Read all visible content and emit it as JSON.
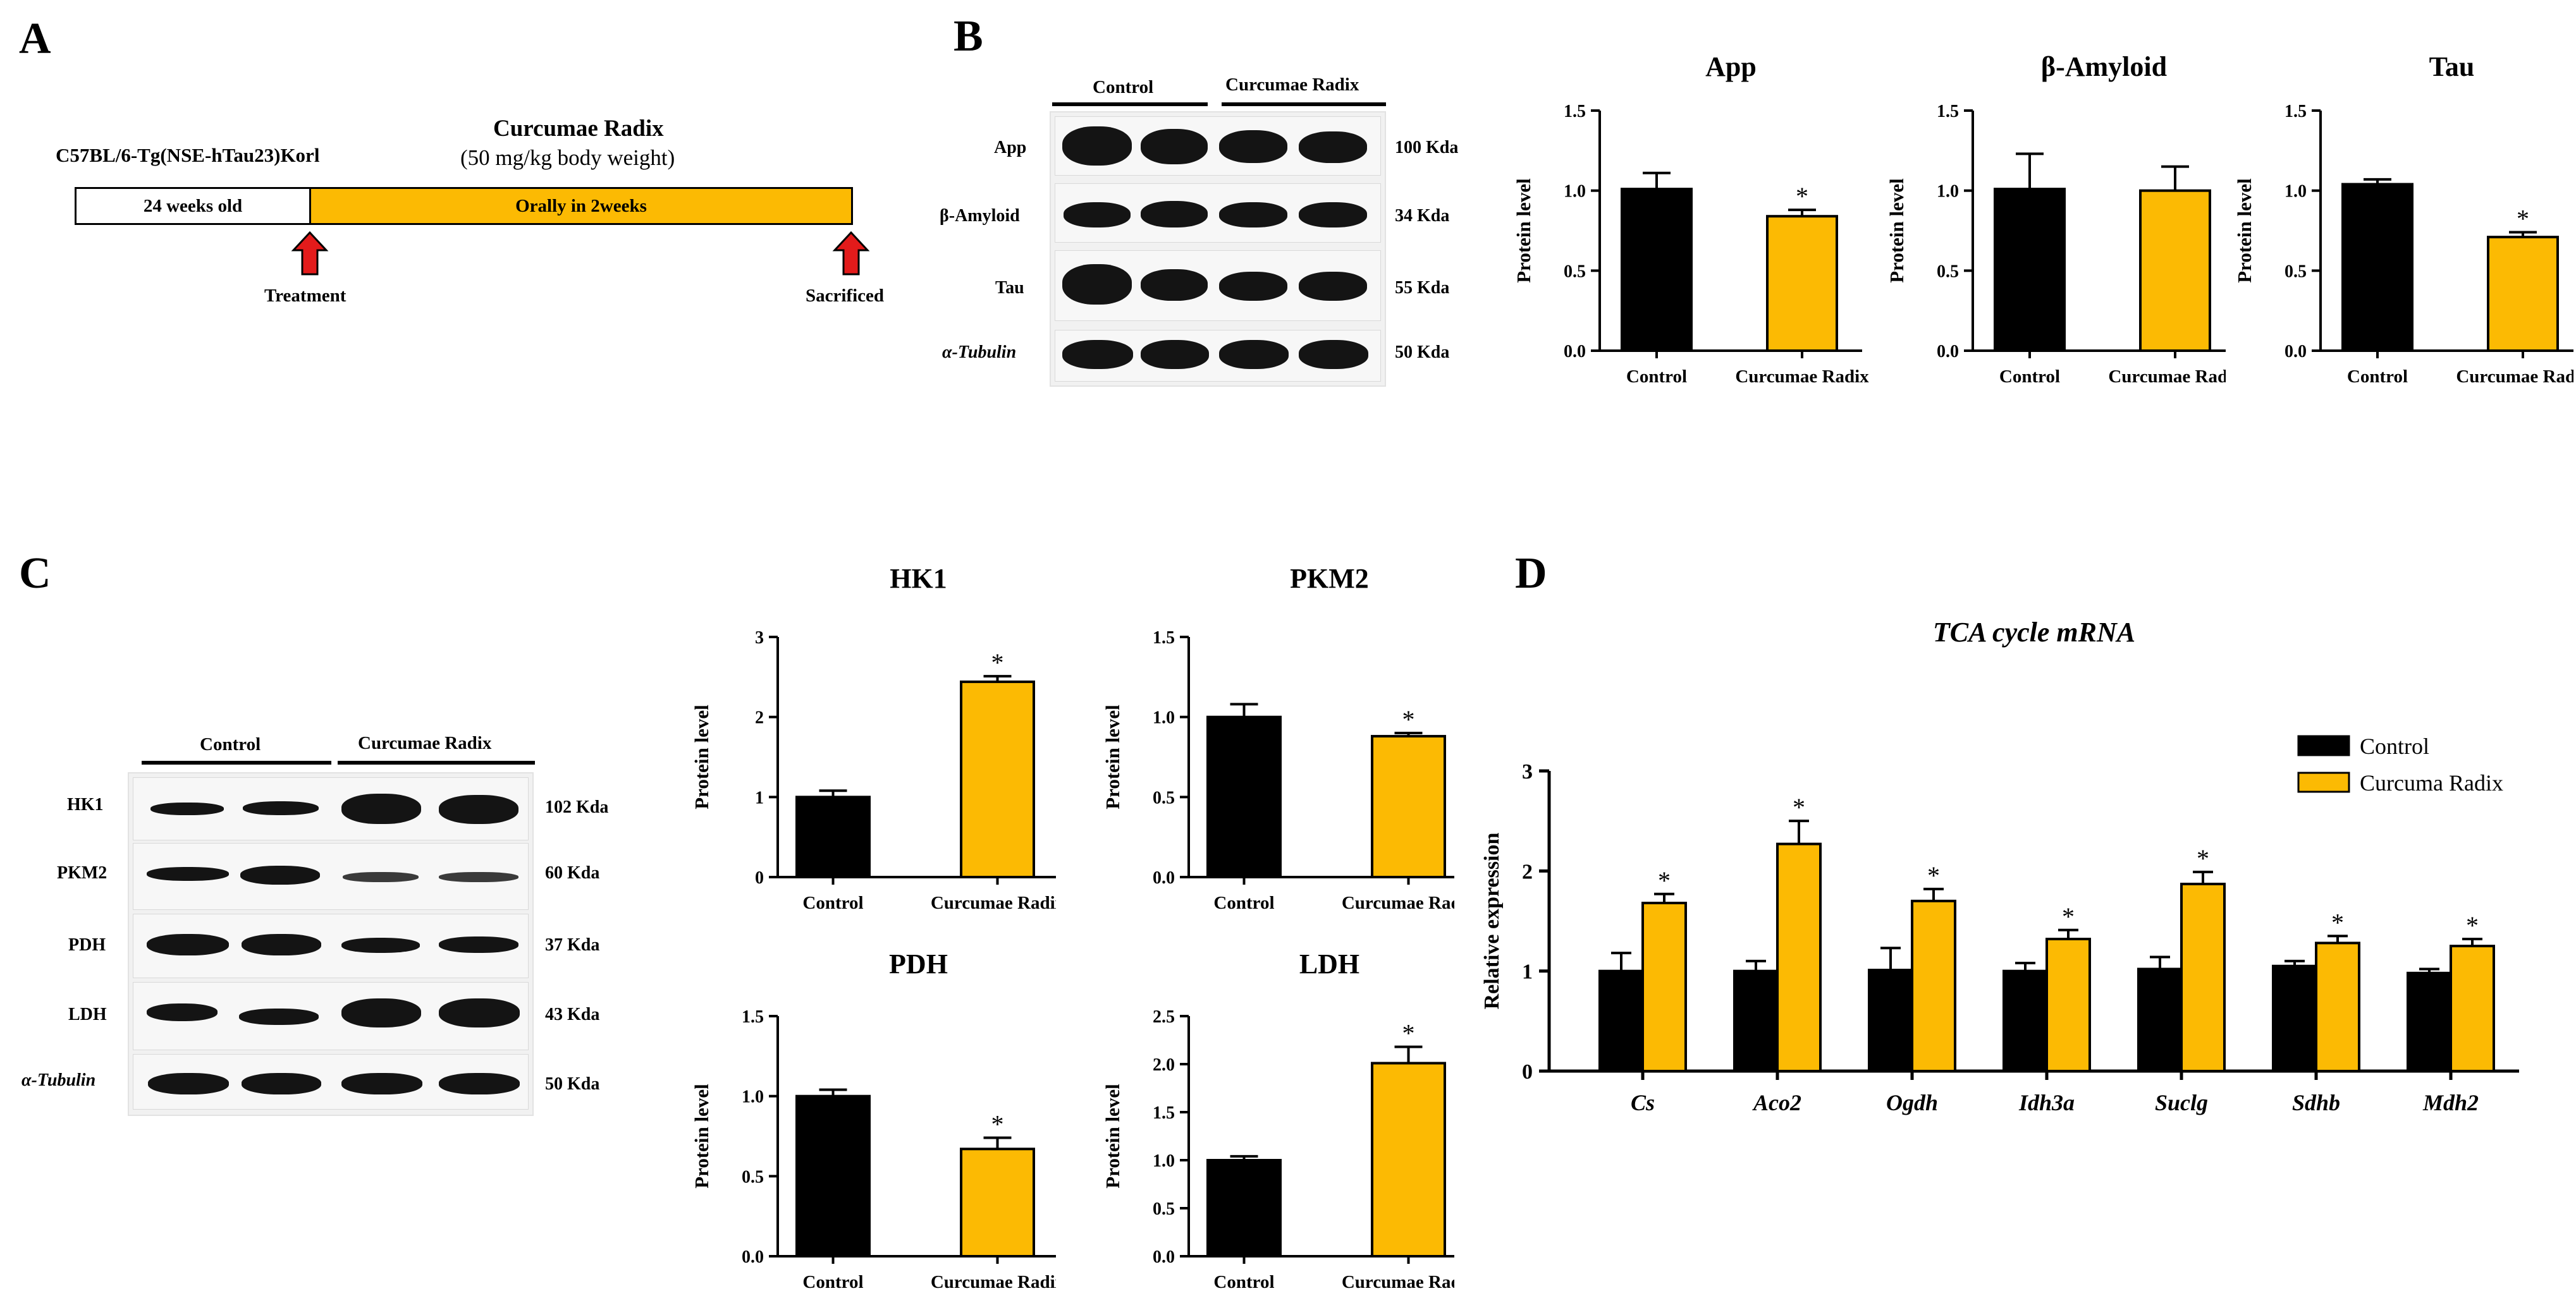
{
  "colors": {
    "control": "#000000",
    "treated": "#FCBA03",
    "arrow": "#E31B1B"
  },
  "panelA": {
    "letter": "A",
    "strain": "C57BL/6-Tg(NSE-hTau23)Korl",
    "drug_title": "Curcumae Radix",
    "dose": "(50 mg/kg body weight)",
    "age_label": "24 weeks old",
    "oral_label": "Orally in 2weeks",
    "treatment": "Treatment",
    "sacrificed": "Sacrificed"
  },
  "panelB": {
    "letter": "B",
    "groups": [
      "Control",
      "Curcumae Radix"
    ],
    "rows": [
      {
        "name": "App",
        "size": "100 Kda"
      },
      {
        "name": "β-Amyloid",
        "size": "34 Kda"
      },
      {
        "name": "Tau",
        "size": "55 Kda"
      },
      {
        "name": "α-Tubulin",
        "size": "50 Kda"
      }
    ]
  },
  "panelC": {
    "letter": "C",
    "groups": [
      "Control",
      "Curcumae Radix"
    ],
    "rows": [
      {
        "name": "HK1",
        "size": "102 Kda"
      },
      {
        "name": "PKM2",
        "size": "60 Kda"
      },
      {
        "name": "PDH",
        "size": "37 Kda"
      },
      {
        "name": "LDH",
        "size": "43 Kda"
      },
      {
        "name": "α-Tubulin",
        "size": "50 Kda"
      }
    ]
  },
  "panelD": {
    "letter": "D"
  },
  "chart_data": [
    {
      "id": "app",
      "type": "bar",
      "title": "App",
      "ylabel": "Protein level",
      "categories": [
        "Control",
        "Curcumae Radix"
      ],
      "values": [
        1.01,
        0.84
      ],
      "errors": [
        0.1,
        0.04
      ],
      "sig": [
        "",
        "*"
      ],
      "ylim": [
        0,
        1.5
      ],
      "ticks": [
        "0.0",
        "0.5",
        "1.0",
        "1.5"
      ]
    },
    {
      "id": "abeta",
      "type": "bar",
      "title": "β-Amyloid",
      "ylabel": "Protein level",
      "categories": [
        "Control",
        "Curcumae Radix"
      ],
      "values": [
        1.01,
        1.0
      ],
      "errors": [
        0.22,
        0.15
      ],
      "sig": [
        "",
        ""
      ],
      "ylim": [
        0,
        1.5
      ],
      "ticks": [
        "0.0",
        "0.5",
        "1.0",
        "1.5"
      ]
    },
    {
      "id": "tau",
      "type": "bar",
      "title": "Tau",
      "ylabel": "Protein level",
      "categories": [
        "Control",
        "Curcumae Radix"
      ],
      "values": [
        1.04,
        0.71
      ],
      "errors": [
        0.03,
        0.03
      ],
      "sig": [
        "",
        "*"
      ],
      "ylim": [
        0,
        1.5
      ],
      "ticks": [
        "0.0",
        "0.5",
        "1.0",
        "1.5"
      ]
    },
    {
      "id": "hk1",
      "type": "bar",
      "title": "HK1",
      "ylabel": "Protein level",
      "categories": [
        "Control",
        "Curcumae Radix"
      ],
      "values": [
        1.0,
        2.44
      ],
      "errors": [
        0.08,
        0.07
      ],
      "sig": [
        "",
        "*"
      ],
      "ylim": [
        0,
        3
      ],
      "ticks": [
        "0",
        "1",
        "2",
        "3"
      ]
    },
    {
      "id": "pkm2",
      "type": "bar",
      "title": "PKM2",
      "ylabel": "Protein level",
      "categories": [
        "Control",
        "Curcumae Radix"
      ],
      "values": [
        1.0,
        0.88
      ],
      "errors": [
        0.08,
        0.02
      ],
      "sig": [
        "",
        "*"
      ],
      "ylim": [
        0,
        1.5
      ],
      "ticks": [
        "0.0",
        "0.5",
        "1.0",
        "1.5"
      ]
    },
    {
      "id": "pdh",
      "type": "bar",
      "title": "PDH",
      "ylabel": "Protein level",
      "categories": [
        "Control",
        "Curcumae Radix"
      ],
      "values": [
        1.0,
        0.67
      ],
      "errors": [
        0.04,
        0.07
      ],
      "sig": [
        "",
        "*"
      ],
      "ylim": [
        0,
        1.5
      ],
      "ticks": [
        "0.0",
        "0.5",
        "1.0",
        "1.5"
      ]
    },
    {
      "id": "ldh",
      "type": "bar",
      "title": "LDH",
      "ylabel": "Protein level",
      "categories": [
        "Control",
        "Curcumae Radix"
      ],
      "values": [
        1.0,
        2.01
      ],
      "errors": [
        0.04,
        0.17
      ],
      "sig": [
        "",
        "*"
      ],
      "ylim": [
        0,
        2.5
      ],
      "ticks": [
        "0.0",
        "0.5",
        "1.0",
        "1.5",
        "2.0",
        "2.5"
      ]
    },
    {
      "id": "tca",
      "type": "bar",
      "title": "TCA cycle mRNA",
      "ylabel": "Relative expression",
      "categories": [
        "Cs",
        "Aco2",
        "Ogdh",
        "Idh3a",
        "Suclg",
        "Sdhb",
        "Mdh2"
      ],
      "series": [
        {
          "name": "Control",
          "values": [
            1.0,
            1.0,
            1.01,
            1.0,
            1.02,
            1.05,
            0.98
          ],
          "errors": [
            0.18,
            0.1,
            0.22,
            0.08,
            0.12,
            0.05,
            0.04
          ]
        },
        {
          "name": "Curcuma Radix",
          "values": [
            1.68,
            2.27,
            1.7,
            1.32,
            1.87,
            1.28,
            1.25
          ],
          "errors": [
            0.09,
            0.23,
            0.12,
            0.09,
            0.12,
            0.07,
            0.07
          ]
        }
      ],
      "sig": [
        "*",
        "*",
        "*",
        "*",
        "*",
        "*",
        "*"
      ],
      "ylim": [
        0,
        3
      ],
      "ticks": [
        "0",
        "1",
        "2",
        "3"
      ],
      "legend": "top-right"
    }
  ]
}
